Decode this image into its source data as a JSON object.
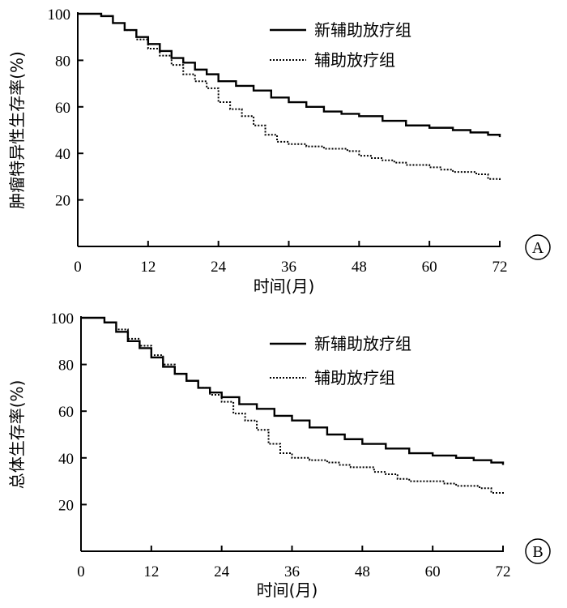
{
  "chart_data": [
    {
      "type": "line",
      "panel_label": "A",
      "xlabel": "时间(月)",
      "ylabel": "肿瘤特异性生存率(%)",
      "xlim": [
        0,
        72
      ],
      "ylim": [
        0,
        100
      ],
      "xticks": [
        0,
        12,
        24,
        36,
        48,
        60,
        72
      ],
      "yticks": [
        20,
        40,
        60,
        80,
        100
      ],
      "grid": false,
      "legend_position": "top-right",
      "series": [
        {
          "name": "新辅助放疗组",
          "style": "solid",
          "x": [
            0,
            3,
            4,
            6,
            8,
            10,
            12,
            14,
            16,
            18,
            20,
            22,
            24,
            27,
            30,
            33,
            36,
            39,
            42,
            45,
            48,
            52,
            56,
            60,
            64,
            67,
            70,
            72
          ],
          "y": [
            100,
            100,
            99,
            96,
            93,
            90,
            87,
            84,
            81,
            79,
            76,
            74,
            71,
            69,
            67,
            64,
            62,
            60,
            58,
            57,
            56,
            54,
            52,
            51,
            50,
            49,
            48,
            47
          ]
        },
        {
          "name": "辅助放疗组",
          "style": "dotted",
          "x": [
            0,
            3,
            4,
            6,
            8,
            10,
            12,
            14,
            16,
            18,
            20,
            22,
            24,
            26,
            28,
            30,
            32,
            34,
            36,
            39,
            42,
            44,
            46,
            48,
            50,
            52,
            54,
            56,
            58,
            60,
            62,
            64,
            66,
            68,
            70,
            72
          ],
          "y": [
            100,
            100,
            99,
            96,
            93,
            89,
            85,
            82,
            78,
            74,
            71,
            68,
            62,
            59,
            56,
            52,
            48,
            45,
            44,
            43,
            42,
            42,
            41,
            39,
            38,
            37,
            36,
            35,
            35,
            34,
            33,
            32,
            32,
            31,
            29,
            28
          ]
        }
      ]
    },
    {
      "type": "line",
      "panel_label": "B",
      "xlabel": "时间(月)",
      "ylabel": "总体生存率(%)",
      "xlim": [
        0,
        72
      ],
      "ylim": [
        0,
        100
      ],
      "xticks": [
        0,
        12,
        24,
        36,
        48,
        60,
        72
      ],
      "yticks": [
        20,
        40,
        60,
        80,
        100
      ],
      "grid": false,
      "legend_position": "top-right",
      "series": [
        {
          "name": "新辅助放疗组",
          "style": "solid",
          "x": [
            0,
            3,
            4,
            6,
            8,
            10,
            12,
            14,
            16,
            18,
            20,
            22,
            24,
            27,
            30,
            33,
            36,
            39,
            42,
            45,
            48,
            52,
            56,
            60,
            64,
            67,
            70,
            72
          ],
          "y": [
            100,
            100,
            98,
            94,
            90,
            87,
            83,
            79,
            76,
            73,
            70,
            68,
            66,
            63,
            61,
            58,
            56,
            53,
            50,
            48,
            46,
            44,
            42,
            41,
            40,
            39,
            38,
            37
          ]
        },
        {
          "name": "辅助放疗组",
          "style": "dotted",
          "x": [
            0,
            3,
            4,
            6,
            8,
            10,
            12,
            14,
            16,
            18,
            20,
            22,
            24,
            26,
            28,
            30,
            32,
            34,
            36,
            39,
            42,
            44,
            46,
            48,
            50,
            52,
            54,
            56,
            58,
            60,
            62,
            64,
            66,
            68,
            70,
            72
          ],
          "y": [
            100,
            100,
            98,
            95,
            91,
            88,
            84,
            80,
            76,
            73,
            70,
            67,
            64,
            59,
            56,
            52,
            46,
            42,
            40,
            39,
            38,
            37,
            36,
            36,
            34,
            33,
            31,
            30,
            30,
            30,
            29,
            28,
            28,
            27,
            25,
            24
          ]
        }
      ]
    }
  ]
}
